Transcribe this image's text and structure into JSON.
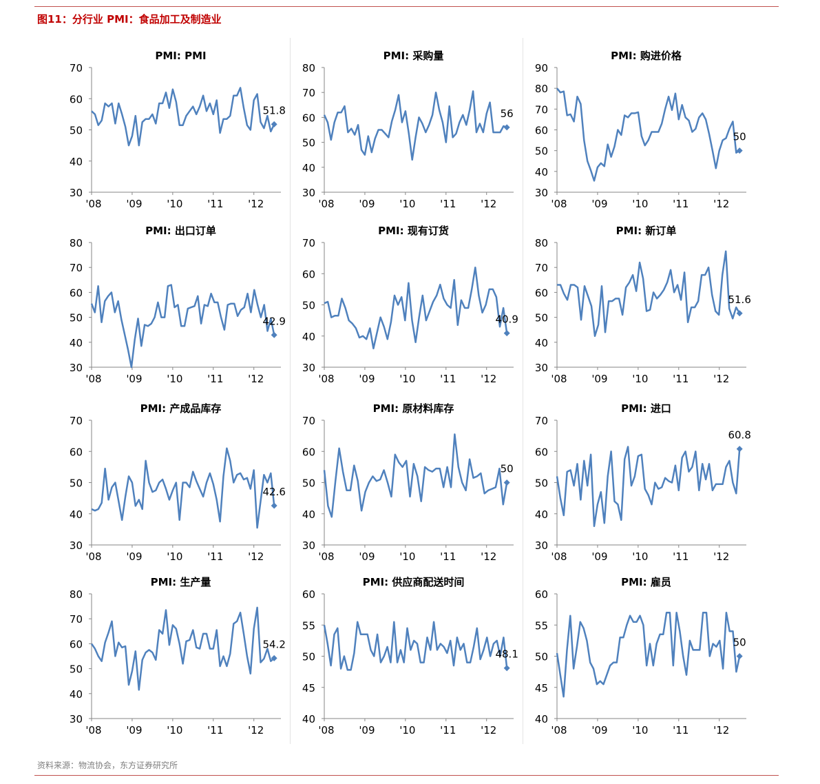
{
  "figure_title": "图11：分行业 PMI：食品加工及制造业",
  "source": "资料来源：物流协会，东方证券研究所",
  "line_color": "#4f81bd",
  "chart_data": [
    {
      "type": "line",
      "title": "PMI: PMI",
      "x_labels": [
        "'08",
        "'09",
        "'10",
        "'11",
        "'12"
      ],
      "ylim": [
        30,
        70
      ],
      "y_ticks": [
        30,
        40,
        50,
        60,
        70
      ],
      "end_label": "51.8",
      "values": [
        56,
        55,
        51.5,
        53,
        58.5,
        57.5,
        58.5,
        52,
        58.5,
        55,
        51,
        45,
        48,
        54.5,
        45,
        52.5,
        53.5,
        53.5,
        55,
        52,
        58.5,
        58.5,
        62,
        57,
        63,
        59,
        51.5,
        51.5,
        54.5,
        56,
        57.5,
        55,
        57.5,
        61,
        56,
        58.5,
        55,
        59.5,
        49,
        53.5,
        53.5,
        54.5,
        61,
        61,
        63.5,
        57,
        51.5,
        50,
        59.5,
        61.5,
        52.5,
        50.5,
        54.5,
        49.5,
        51.8
      ]
    },
    {
      "type": "line",
      "title": "PMI: 采购量",
      "x_labels": [
        "'08",
        "'09",
        "'10",
        "'11",
        "'12"
      ],
      "ylim": [
        30,
        80
      ],
      "y_ticks": [
        30,
        40,
        50,
        60,
        70,
        80
      ],
      "end_label": "56",
      "values": [
        61,
        58,
        51,
        58,
        62,
        62,
        64.5,
        54,
        55.5,
        53,
        57,
        47,
        45,
        52.5,
        46,
        51.5,
        55,
        55,
        53.5,
        52,
        58.5,
        63,
        69,
        58,
        62.5,
        53.5,
        43,
        52,
        60,
        57.5,
        54,
        57,
        61,
        70,
        63,
        58,
        50,
        64.5,
        52,
        53.5,
        58,
        61,
        57,
        63,
        70.5,
        54,
        57.5,
        54,
        61.5,
        66,
        54,
        54,
        54,
        56.5,
        56
      ]
    },
    {
      "type": "line",
      "title": "PMI: 购进价格",
      "x_labels": [
        "'08",
        "'09",
        "'10",
        "'11",
        "'12"
      ],
      "ylim": [
        30,
        90
      ],
      "y_ticks": [
        30,
        40,
        50,
        60,
        70,
        80,
        90
      ],
      "end_label": "50",
      "values": [
        80,
        78,
        78.5,
        67,
        67.5,
        64,
        76,
        72.5,
        55,
        45,
        40.5,
        35.5,
        42,
        44,
        42.5,
        53,
        47,
        52,
        60,
        57.5,
        67,
        66,
        68,
        68,
        68.5,
        57,
        52.5,
        55,
        59,
        59,
        59,
        63,
        70,
        76,
        69.5,
        77.5,
        65,
        72,
        66,
        64.5,
        59,
        60.5,
        66,
        68,
        65,
        58,
        50,
        41.5,
        50,
        55,
        56,
        60.5,
        64,
        49,
        50
      ]
    },
    {
      "type": "line",
      "title": "PMI: 出口订单",
      "x_labels": [
        "'08",
        "'09",
        "'10",
        "'11",
        "'12"
      ],
      "ylim": [
        30,
        80
      ],
      "y_ticks": [
        30,
        40,
        50,
        60,
        70,
        80
      ],
      "end_label": "42.9",
      "values": [
        55.5,
        52,
        62.5,
        48,
        56.5,
        58.5,
        60,
        52,
        56.5,
        49,
        43,
        37,
        30,
        41,
        49.5,
        38.5,
        47,
        46.5,
        47.5,
        50,
        56,
        50,
        50,
        62.5,
        63,
        54,
        55,
        46.5,
        46.5,
        53.5,
        54,
        54.5,
        58.5,
        47.5,
        55,
        54.5,
        59.5,
        56,
        56,
        50,
        45,
        55,
        55.5,
        55.5,
        50.5,
        53,
        54,
        59.5,
        52,
        61,
        55,
        50,
        55,
        44.5,
        49.5,
        42.9
      ]
    },
    {
      "type": "line",
      "title": "PMI: 现有订货",
      "x_labels": [
        "'08",
        "'09",
        "'10",
        "'11",
        "'12"
      ],
      "ylim": [
        30,
        70
      ],
      "y_ticks": [
        30,
        40,
        50,
        60,
        70
      ],
      "end_label": "40.9",
      "values": [
        50.5,
        51,
        46,
        46.5,
        46.5,
        52,
        49,
        45,
        44,
        42.5,
        39.5,
        40,
        39,
        42.5,
        36,
        41,
        46,
        43,
        39,
        44.5,
        53,
        50,
        52.5,
        45,
        57,
        45,
        38,
        46,
        53,
        45,
        48,
        51,
        53,
        56.5,
        52,
        50,
        49,
        58,
        43.5,
        51.5,
        49,
        49,
        55,
        62,
        53,
        47.5,
        50,
        55,
        55,
        52.5,
        43,
        49,
        40.9
      ]
    },
    {
      "type": "line",
      "title": "PMI: 新订单",
      "x_labels": [
        "'08",
        "'09",
        "'10",
        "'11",
        "'12"
      ],
      "ylim": [
        30,
        80
      ],
      "y_ticks": [
        30,
        40,
        50,
        60,
        70,
        80
      ],
      "end_label": "51.6",
      "values": [
        63,
        63,
        59.5,
        57,
        63,
        63,
        62,
        49,
        62.5,
        58.5,
        54.5,
        42.5,
        47,
        62.5,
        44,
        56.5,
        56.5,
        57.5,
        57.5,
        51,
        62,
        64,
        67,
        60.5,
        72,
        65.5,
        52.5,
        53,
        60,
        57.5,
        59,
        61,
        64,
        69,
        60,
        63,
        57,
        68,
        48,
        54,
        54,
        56.5,
        67,
        67,
        70,
        59,
        52.5,
        51,
        67,
        76.5,
        53.5,
        49.5,
        54,
        51.6
      ]
    },
    {
      "type": "line",
      "title": "PMI: 产成品库存",
      "x_labels": [
        "'08",
        "'09",
        "'10",
        "'11",
        "'12"
      ],
      "ylim": [
        30,
        70
      ],
      "y_ticks": [
        30,
        40,
        50,
        60,
        70
      ],
      "end_label": "42.6",
      "values": [
        41.5,
        41,
        41.5,
        43.5,
        54.5,
        44.5,
        48.5,
        50,
        44,
        38,
        45.5,
        52,
        50,
        42.5,
        44.5,
        41.5,
        57,
        50,
        47,
        47.5,
        50,
        51,
        48,
        44.5,
        47.5,
        50,
        38,
        50,
        50,
        48.5,
        53.5,
        50.5,
        48,
        45.5,
        50,
        53,
        49.5,
        44.5,
        37.5,
        52,
        61,
        57,
        50,
        52.5,
        53,
        51,
        51.5,
        48,
        54,
        35.5,
        44,
        52.5,
        50,
        53,
        42.6
      ]
    },
    {
      "type": "line",
      "title": "PMI: 原材料库存",
      "x_labels": [
        "'08",
        "'09",
        "'10",
        "'11",
        "'12"
      ],
      "ylim": [
        30,
        70
      ],
      "y_ticks": [
        30,
        40,
        50,
        60,
        70
      ],
      "end_label": "50",
      "values": [
        54,
        42.5,
        39,
        50.5,
        61,
        53.5,
        47.5,
        47.5,
        55.5,
        50.5,
        41,
        47,
        50,
        52,
        50.5,
        51,
        54,
        50,
        45.5,
        59,
        56.5,
        55,
        57,
        45.5,
        56,
        52,
        44,
        55,
        54,
        53.5,
        54.5,
        54.5,
        48.5,
        55,
        48.5,
        65.5,
        55,
        50,
        47.5,
        57.5,
        51.5,
        52,
        53,
        46.5,
        47.5,
        48,
        48.5,
        54.5,
        43,
        50
      ]
    },
    {
      "type": "line",
      "title": "PMI: 进口",
      "x_labels": [
        "'08",
        "'09",
        "'10",
        "'11",
        "'12"
      ],
      "ylim": [
        30,
        70
      ],
      "y_ticks": [
        30,
        40,
        50,
        60,
        70
      ],
      "end_label": "60.8",
      "values": [
        52,
        45,
        39.5,
        53.5,
        54,
        49,
        56,
        44.5,
        57,
        49,
        59,
        36,
        43,
        47,
        37,
        52,
        60,
        44,
        43,
        38,
        57.5,
        61.5,
        49,
        52,
        58.5,
        59,
        48,
        46,
        43,
        50,
        48,
        48.5,
        51.5,
        50.5,
        50,
        55.5,
        47.5,
        58,
        60,
        53.5,
        55,
        60,
        47.5,
        56,
        51,
        56,
        47.5,
        49.5,
        49.5,
        49.5,
        55,
        57,
        50,
        46.5,
        60.8
      ]
    },
    {
      "type": "line",
      "title": "PMI: 生产量",
      "x_labels": [
        "'08",
        "'09",
        "'10",
        "'11",
        "'12"
      ],
      "ylim": [
        30,
        80
      ],
      "y_ticks": [
        30,
        40,
        50,
        60,
        70,
        80
      ],
      "end_label": "54.2",
      "values": [
        60,
        58,
        55,
        53,
        60.5,
        64.5,
        69,
        55,
        60.5,
        58.5,
        59,
        43.5,
        49,
        57,
        41.5,
        53.5,
        56.5,
        57.5,
        56.5,
        53.5,
        65.5,
        64,
        73.5,
        59.5,
        67.5,
        66,
        60,
        52,
        61,
        61.5,
        65.5,
        58.5,
        58,
        64,
        64,
        58,
        58,
        65.5,
        51,
        55,
        51,
        56,
        68,
        69,
        72.5,
        64,
        55,
        48,
        66,
        74.5,
        52.5,
        54,
        58,
        53,
        54.2
      ]
    },
    {
      "type": "line",
      "title": "PMI: 供应商配送时间",
      "x_labels": [
        "'08",
        "'09",
        "'10",
        "'11",
        "'12"
      ],
      "ylim": [
        40,
        60
      ],
      "y_ticks": [
        40,
        45,
        50,
        55,
        60
      ],
      "end_label": "48.1",
      "values": [
        55,
        52,
        48.5,
        53.5,
        54.5,
        48,
        50,
        47.8,
        47.8,
        50.5,
        55.5,
        53.5,
        53.5,
        53.5,
        51,
        50,
        53.5,
        49,
        50,
        51.5,
        49,
        55.5,
        49,
        51,
        49,
        54.5,
        51,
        52.5,
        52,
        49,
        49,
        53,
        51,
        55.5,
        51,
        52,
        51.5,
        50.5,
        52.5,
        48.5,
        53,
        51,
        52,
        49,
        49,
        51.5,
        54.5,
        49.5,
        51,
        53,
        50,
        52,
        52.5,
        50,
        53,
        48.1
      ]
    },
    {
      "type": "line",
      "title": "PMI: 雇员",
      "x_labels": [
        "'08",
        "'09",
        "'10",
        "'11",
        "'12"
      ],
      "ylim": [
        40,
        60
      ],
      "y_ticks": [
        40,
        45,
        50,
        55,
        60
      ],
      "end_label": "50",
      "values": [
        50.5,
        47,
        43.5,
        51,
        56.5,
        48,
        51.5,
        55.5,
        54.5,
        52.5,
        49,
        48,
        45.5,
        46,
        45.5,
        47,
        48.5,
        49,
        49,
        53,
        53,
        55,
        56.5,
        55.5,
        55.5,
        56.5,
        55,
        48.5,
        52,
        48.5,
        52,
        53.5,
        53.5,
        57,
        57,
        48.5,
        57,
        54,
        50,
        47,
        52.5,
        51,
        51,
        51,
        57,
        57,
        50,
        52,
        51.5,
        52.5,
        48,
        57,
        54,
        54,
        47.5,
        50
      ]
    }
  ]
}
